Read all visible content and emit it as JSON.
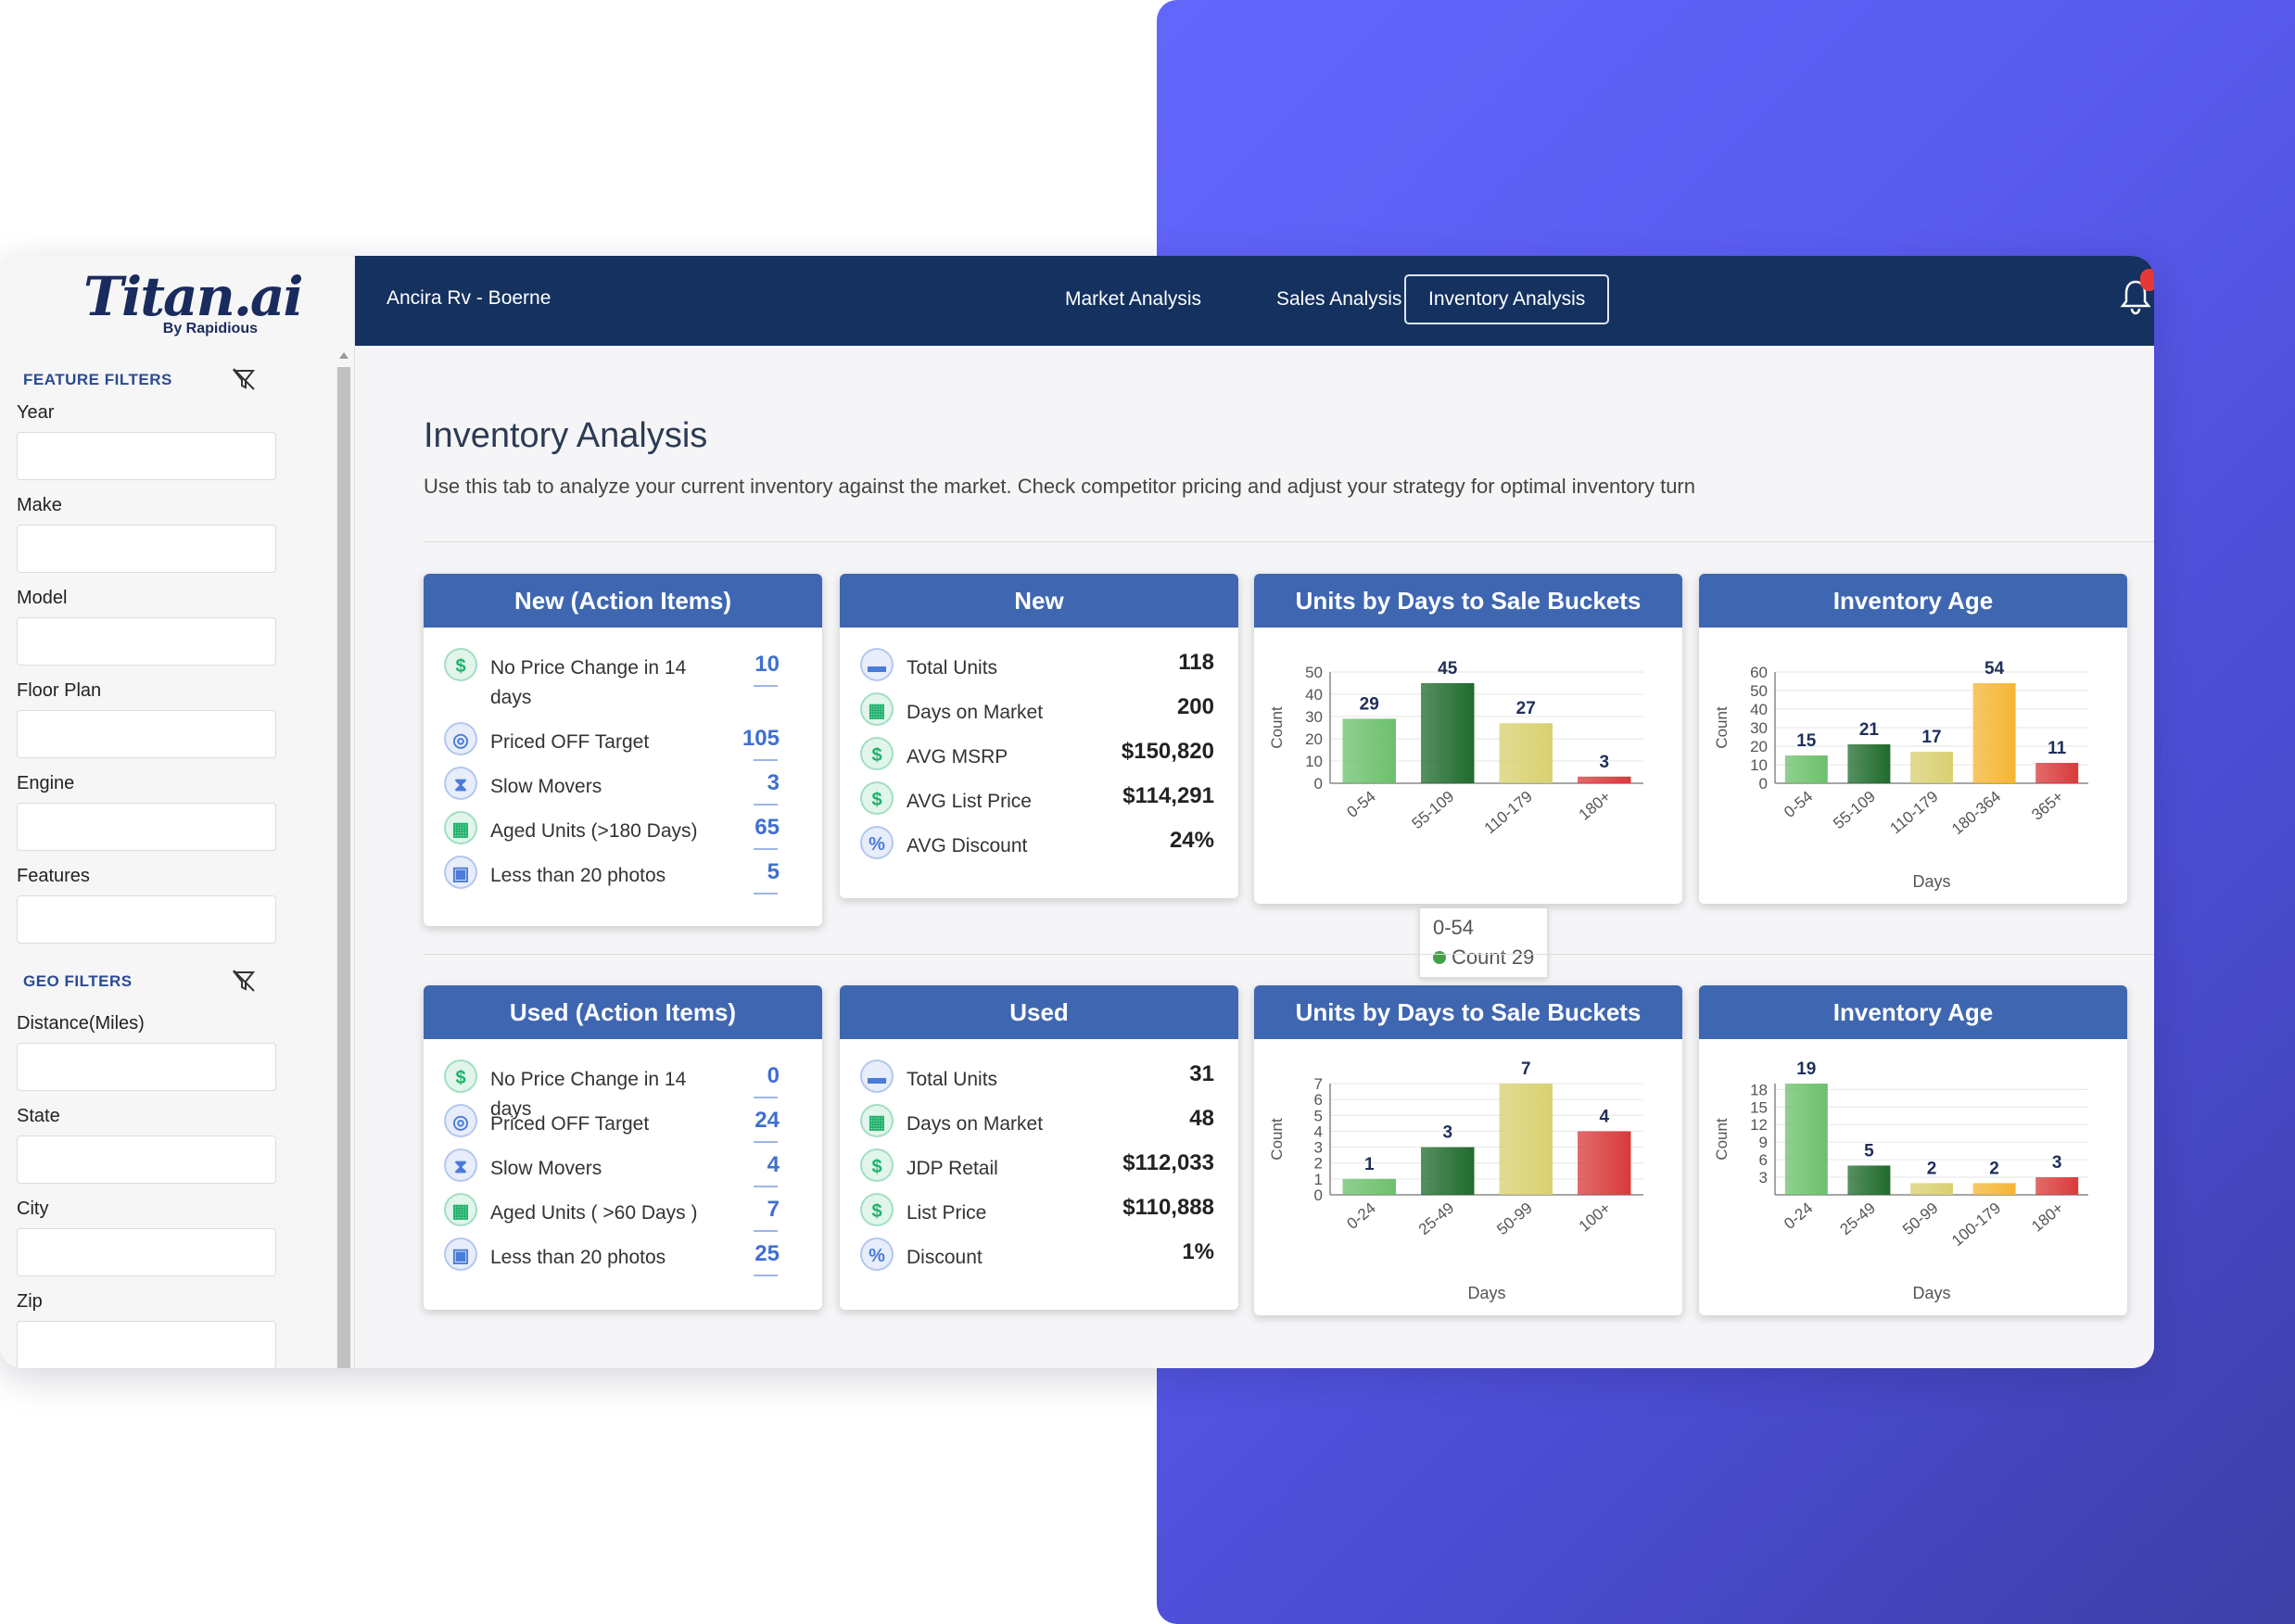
{
  "brand": {
    "logo": "Titan.ai",
    "logo_sub": "By Rapidious"
  },
  "sidebar": {
    "feature_filters_title": "FEATURE FILTERS",
    "geo_filters_title": "GEO FILTERS",
    "feature_fields": [
      "Year",
      "Make",
      "Model",
      "Floor Plan",
      "Engine",
      "Features"
    ],
    "geo_fields": [
      "Distance(Miles)",
      "State",
      "City",
      "Zip"
    ]
  },
  "topnav": {
    "dealer": "Ancira Rv - Boerne",
    "tabs": [
      "Market Analysis",
      "Sales Analysis",
      "Inventory Analysis"
    ],
    "active_tab": "Inventory Analysis"
  },
  "page": {
    "title": "Inventory Analysis",
    "description": "Use this tab to analyze your current inventory against the market. Check competitor pricing and adjust your strategy for optimal inventory turn"
  },
  "new_action": {
    "title": "New (Action Items)",
    "items": [
      {
        "label": "No Price Change in 14 days",
        "value": "10",
        "icon": "dollar-icon"
      },
      {
        "label": "Priced OFF Target",
        "value": "105",
        "icon": "target-icon"
      },
      {
        "label": "Slow Movers",
        "value": "3",
        "icon": "hourglass-icon"
      },
      {
        "label": "Aged Units (>180 Days)",
        "value": "65",
        "icon": "calendar-icon"
      },
      {
        "label": "Less than 20 photos",
        "value": "5",
        "icon": "photo-icon"
      }
    ]
  },
  "new_stats": {
    "title": "New",
    "items": [
      {
        "label": "Total Units",
        "value": "118",
        "icon": "rv-icon"
      },
      {
        "label": "Days on Market",
        "value": "200",
        "icon": "calendar-icon"
      },
      {
        "label": "AVG MSRP",
        "value": "$150,820",
        "icon": "dollar-icon"
      },
      {
        "label": "AVG List Price",
        "value": "$114,291",
        "icon": "dollar-icon"
      },
      {
        "label": "AVG Discount",
        "value": "24%",
        "icon": "percent-icon"
      }
    ]
  },
  "used_action": {
    "title": "Used (Action Items)",
    "items": [
      {
        "label": "No Price Change in 14 days",
        "value": "0",
        "icon": "dollar-icon"
      },
      {
        "label": "Priced OFF Target",
        "value": "24",
        "icon": "target-icon"
      },
      {
        "label": "Slow Movers",
        "value": "4",
        "icon": "hourglass-icon"
      },
      {
        "label": "Aged Units ( >60 Days )",
        "value": "7",
        "icon": "calendar-icon"
      },
      {
        "label": "Less than 20 photos",
        "value": "25",
        "icon": "photo-icon"
      }
    ]
  },
  "used_stats": {
    "title": "Used",
    "items": [
      {
        "label": "Total Units",
        "value": "31",
        "icon": "rv-icon"
      },
      {
        "label": "Days on Market",
        "value": "48",
        "icon": "calendar-icon"
      },
      {
        "label": "JDP Retail",
        "value": "$112,033",
        "icon": "dollar-icon"
      },
      {
        "label": "List Price",
        "value": "$110,888",
        "icon": "dollar-icon"
      },
      {
        "label": "Discount",
        "value": "1%",
        "icon": "percent-icon"
      }
    ]
  },
  "tooltip": {
    "category": "0-54",
    "text": "Count 29"
  },
  "chart_data": [
    {
      "id": "new-days-to-sale",
      "type": "bar",
      "title": "Units by Days to Sale Buckets",
      "xlabel": "",
      "ylabel": "Count",
      "categories": [
        "0-54",
        "55-109",
        "110-179",
        "180+"
      ],
      "values": [
        29,
        45,
        27,
        3
      ],
      "yticks": [
        0,
        10,
        20,
        30,
        40,
        50
      ],
      "ylim": [
        0,
        50
      ],
      "colors": [
        "#6cc06c",
        "#1f6b2c",
        "#d8d070",
        "#d83a3a"
      ]
    },
    {
      "id": "new-inventory-age",
      "type": "bar",
      "title": "Inventory Age",
      "xlabel": "Days",
      "ylabel": "Count",
      "categories": [
        "0-54",
        "55-109",
        "110-179",
        "180-364",
        "365+"
      ],
      "values": [
        15,
        21,
        17,
        54,
        11
      ],
      "yticks": [
        0,
        10,
        20,
        30,
        40,
        50,
        60
      ],
      "ylim": [
        0,
        60
      ],
      "colors": [
        "#6cc06c",
        "#1f6b2c",
        "#d8d070",
        "#f5b533",
        "#d83a3a"
      ]
    },
    {
      "id": "used-days-to-sale",
      "type": "bar",
      "title": "Units by Days to Sale Buckets",
      "xlabel": "Days",
      "ylabel": "Count",
      "categories": [
        "0-24",
        "25-49",
        "50-99",
        "100+"
      ],
      "values": [
        1,
        3,
        7,
        4
      ],
      "yticks": [
        0,
        1,
        2,
        3,
        4,
        5,
        6,
        7
      ],
      "ylim": [
        0,
        7
      ],
      "colors": [
        "#6cc06c",
        "#1f6b2c",
        "#d8d070",
        "#d83a3a"
      ]
    },
    {
      "id": "used-inventory-age",
      "type": "bar",
      "title": "Inventory Age",
      "xlabel": "Days",
      "ylabel": "Count",
      "categories": [
        "0-24",
        "25-49",
        "50-99",
        "100-179",
        "180+"
      ],
      "values": [
        19,
        5,
        2,
        2,
        3
      ],
      "yticks": [
        3,
        6,
        9,
        12,
        15,
        18
      ],
      "ylim": [
        0,
        19
      ],
      "colors": [
        "#6cc06c",
        "#1f6b2c",
        "#d8d070",
        "#f5b533",
        "#d83a3a"
      ]
    }
  ]
}
